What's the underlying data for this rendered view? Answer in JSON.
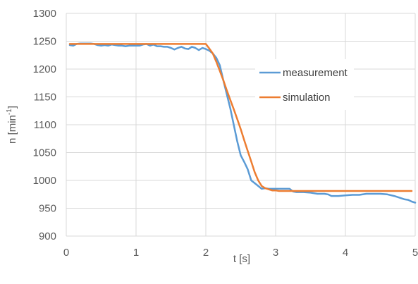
{
  "chart_data": {
    "type": "line",
    "xlabel": "t [s]",
    "ylabel_main": "n [min",
    "ylabel_sup": "-1",
    "ylabel_close": "]",
    "xlim": [
      0,
      5
    ],
    "ylim": [
      900,
      1300
    ],
    "xticks": [
      "0",
      "1",
      "2",
      "3",
      "4",
      "5"
    ],
    "yticks": [
      "900",
      "950",
      "1000",
      "1050",
      "1100",
      "1150",
      "1200",
      "1250",
      "1300"
    ],
    "grid": true,
    "legend_position": "right-center",
    "series": [
      {
        "name": "measurement",
        "color": "#5B9BD5",
        "x": [
          0.05,
          0.1,
          0.15,
          0.2,
          0.25,
          0.3,
          0.35,
          0.4,
          0.45,
          0.5,
          0.55,
          0.6,
          0.65,
          0.7,
          0.75,
          0.8,
          0.85,
          0.9,
          0.95,
          1.0,
          1.05,
          1.1,
          1.15,
          1.2,
          1.25,
          1.3,
          1.35,
          1.4,
          1.45,
          1.5,
          1.55,
          1.6,
          1.65,
          1.7,
          1.75,
          1.8,
          1.85,
          1.9,
          1.95,
          2.0,
          2.05,
          2.1,
          2.15,
          2.2,
          2.25,
          2.3,
          2.35,
          2.4,
          2.45,
          2.5,
          2.55,
          2.6,
          2.65,
          2.7,
          2.75,
          2.8,
          2.85,
          2.9,
          2.95,
          3.0,
          3.1,
          3.2,
          3.25,
          3.3,
          3.4,
          3.5,
          3.6,
          3.7,
          3.75,
          3.8,
          3.9,
          4.0,
          4.1,
          4.2,
          4.3,
          4.4,
          4.5,
          4.6,
          4.7,
          4.75,
          4.8,
          4.85,
          4.9,
          4.95,
          5.0
        ],
        "y": [
          1243,
          1242,
          1245,
          1246,
          1246,
          1246,
          1246,
          1245,
          1243,
          1242,
          1243,
          1242,
          1244,
          1243,
          1242,
          1242,
          1241,
          1242,
          1242,
          1242,
          1242,
          1244,
          1245,
          1242,
          1244,
          1241,
          1241,
          1240,
          1240,
          1238,
          1235,
          1238,
          1240,
          1237,
          1236,
          1240,
          1238,
          1234,
          1238,
          1236,
          1233,
          1228,
          1220,
          1207,
          1180,
          1155,
          1130,
          1100,
          1070,
          1045,
          1033,
          1020,
          1000,
          995,
          990,
          985,
          986,
          985,
          985,
          985,
          985,
          985,
          980,
          979,
          979,
          978,
          976,
          976,
          975,
          972,
          972,
          973,
          974,
          974,
          976,
          976,
          976,
          975,
          972,
          970,
          968,
          966,
          965,
          962,
          960
        ]
      },
      {
        "name": "simulation",
        "color": "#ED7D31",
        "x": [
          0.05,
          0.5,
          1.0,
          1.5,
          2.0,
          2.05,
          2.1,
          2.15,
          2.2,
          2.25,
          2.3,
          2.35,
          2.4,
          2.45,
          2.5,
          2.55,
          2.6,
          2.65,
          2.7,
          2.75,
          2.8,
          2.85,
          2.9,
          2.95,
          3.0,
          3.05,
          3.1,
          3.2,
          3.4,
          3.6,
          3.8,
          4.0,
          4.5,
          4.95
        ],
        "y": [
          1245,
          1245,
          1245,
          1245,
          1245,
          1237,
          1228,
          1213,
          1197,
          1180,
          1162,
          1145,
          1128,
          1110,
          1092,
          1072,
          1053,
          1034,
          1015,
          1000,
          990,
          986,
          984,
          982,
          982,
          981,
          981,
          981,
          981,
          981,
          981,
          981,
          981,
          981
        ]
      }
    ]
  }
}
